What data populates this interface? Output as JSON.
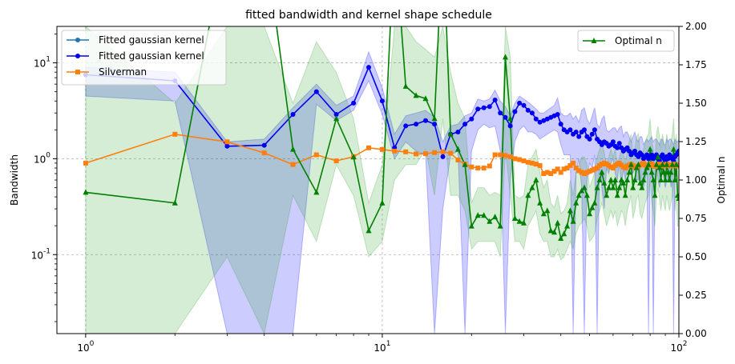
{
  "chart_data": {
    "type": "line",
    "title": "fitted bandwidth and kernel shape schedule",
    "xscale": "log",
    "xlim": [
      0.8,
      100
    ],
    "x_tick_labels": [
      "10^0",
      "10^1",
      "10^2"
    ],
    "left_axis": {
      "label": "Bandwidth",
      "scale": "log",
      "ylim": [
        0.015,
        24
      ],
      "tick_labels": [
        "10^-1",
        "10^0",
        "10^1"
      ]
    },
    "right_axis": {
      "label": "Optimal n",
      "scale": "linear",
      "ylim": [
        0.0,
        2.0
      ],
      "tick_labels": [
        "0.00",
        "0.25",
        "0.50",
        "0.75",
        "1.00",
        "1.25",
        "1.50",
        "1.75",
        "2.00"
      ]
    },
    "grid": true,
    "legends": [
      {
        "placement": "top-left",
        "entries": [
          "Fitted gaussian kernel",
          "Fitted gaussian kernel",
          "Silverman"
        ]
      },
      {
        "placement": "top-right",
        "entries": [
          "Optimal n"
        ]
      }
    ],
    "series": [
      {
        "name": "Fitted gaussian kernel",
        "axis": "left",
        "color": "#1f77b4",
        "marker": "circle",
        "x": [],
        "y": []
      },
      {
        "name": "Fitted gaussian kernel",
        "axis": "left",
        "color": "#0000ee",
        "band_color": "#0000ff",
        "marker": "circle",
        "x": [
          1,
          2,
          3,
          4,
          5,
          6,
          7,
          8,
          9,
          10,
          11,
          12,
          13,
          14,
          15,
          16,
          17,
          18,
          19,
          20,
          21,
          22,
          23,
          24,
          25,
          26,
          27,
          28,
          29,
          30,
          31,
          32,
          33,
          34,
          35,
          36,
          37,
          38,
          39,
          40,
          41,
          42,
          43,
          44,
          45,
          46,
          47,
          48,
          49,
          50,
          51,
          52,
          53,
          54,
          55,
          56,
          57,
          58,
          59,
          60,
          61,
          62,
          63,
          64,
          65,
          66,
          67,
          68,
          69,
          70,
          71,
          72,
          73,
          74,
          75,
          76,
          77,
          78,
          79,
          80,
          81,
          82,
          83,
          84,
          85,
          86,
          87,
          88,
          89,
          90,
          91,
          92,
          93,
          94,
          95,
          96,
          97,
          98,
          99,
          100
        ],
        "y": [
          7.5,
          6.5,
          1.35,
          1.38,
          2.9,
          5.0,
          2.9,
          3.8,
          9.0,
          4.0,
          1.3,
          2.2,
          2.3,
          2.5,
          2.3,
          1.05,
          1.8,
          1.9,
          2.3,
          2.6,
          3.3,
          3.4,
          3.5,
          4.1,
          3.0,
          2.7,
          2.2,
          3.1,
          3.8,
          3.6,
          3.2,
          3.0,
          2.6,
          2.4,
          2.5,
          2.6,
          2.7,
          2.8,
          2.9,
          2.3,
          2.0,
          1.9,
          2.0,
          1.8,
          1.9,
          1.7,
          1.9,
          2.0,
          1.7,
          1.6,
          1.8,
          2.0,
          1.6,
          1.5,
          1.4,
          1.5,
          1.45,
          1.35,
          1.4,
          1.5,
          1.35,
          1.3,
          1.45,
          1.3,
          1.2,
          1.25,
          1.3,
          1.2,
          1.1,
          1.15,
          1.2,
          1.1,
          1.05,
          1.15,
          1.1,
          1.0,
          1.05,
          1.1,
          1.0,
          1.05,
          1.1,
          1.0,
          1.05,
          1.1,
          1.0,
          0.95,
          1.05,
          1.1,
          1.0,
          0.95,
          1.05,
          1.0,
          1.1,
          1.05,
          1.0,
          0.95,
          1.05,
          1.1,
          1.15,
          1.2
        ],
        "lower": [
          4.5,
          4.0,
          0.015,
          0.015,
          0.015,
          3.7,
          2.5,
          3.2,
          6.5,
          2.9,
          1.0,
          1.5,
          1.2,
          1.1,
          0.015,
          0.3,
          1.1,
          1.2,
          0.015,
          1.2,
          2.0,
          2.3,
          2.1,
          2.2,
          1.2,
          0.015,
          0.6,
          1.5,
          2.0,
          2.2,
          1.9,
          1.9,
          1.8,
          1.6,
          1.7,
          1.8,
          1.9,
          2.0,
          1.9,
          1.4,
          1.1,
          1.1,
          1.1,
          0.015,
          0.7,
          1.0,
          0.5,
          0.015,
          0.6,
          0.9,
          0.8,
          1.1,
          0.015,
          0.9,
          0.5,
          0.3,
          0.8,
          0.7,
          0.9,
          1.0,
          0.7,
          0.6,
          0.9,
          0.5,
          0.8,
          0.6,
          0.8,
          0.7,
          0.9,
          0.7,
          0.8,
          0.6,
          0.6,
          0.8,
          0.5,
          0.5,
          0.6,
          0.8,
          0.015,
          0.6,
          0.7,
          0.015,
          0.6,
          0.8,
          0.6,
          0.5,
          0.6,
          0.8,
          0.6,
          0.5,
          0.6,
          0.6,
          0.8,
          0.5,
          0.6,
          0.015,
          0.6,
          0.8,
          0.9,
          0.9
        ],
        "upper": [
          9.0,
          8.0,
          1.5,
          1.6,
          3.4,
          6.0,
          3.6,
          4.5,
          13.0,
          5.5,
          1.8,
          2.8,
          3.0,
          3.2,
          2.7,
          1.5,
          2.2,
          2.3,
          2.8,
          3.0,
          4.2,
          4.0,
          4.2,
          5.2,
          4.0,
          3.5,
          2.8,
          3.8,
          4.5,
          4.2,
          3.9,
          3.6,
          3.3,
          3.0,
          3.0,
          3.2,
          3.4,
          3.6,
          4.3,
          3.0,
          2.8,
          2.8,
          3.0,
          2.6,
          2.8,
          2.4,
          3.2,
          3.4,
          2.6,
          2.3,
          2.8,
          3.4,
          2.3,
          2.1,
          2.6,
          2.8,
          2.0,
          1.9,
          2.0,
          2.1,
          2.1,
          1.9,
          2.1,
          2.2,
          1.7,
          1.9,
          1.9,
          1.7,
          1.5,
          1.7,
          1.9,
          1.6,
          1.5,
          1.7,
          1.7,
          1.4,
          1.5,
          1.6,
          1.5,
          1.6,
          1.7,
          1.5,
          1.6,
          1.6,
          1.5,
          1.4,
          1.6,
          1.6,
          1.4,
          1.4,
          1.6,
          1.5,
          1.6,
          1.6,
          1.5,
          1.4,
          1.6,
          1.5,
          1.5,
          1.6
        ]
      },
      {
        "name": "Silverman",
        "axis": "left",
        "color": "#ff7f0e",
        "marker": "square",
        "x": [
          1,
          2,
          3,
          4,
          5,
          6,
          7,
          8,
          9,
          10,
          11,
          12,
          13,
          14,
          15,
          16,
          17,
          18,
          19,
          20,
          21,
          22,
          23,
          24,
          25,
          26,
          27,
          28,
          29,
          30,
          31,
          32,
          33,
          34,
          35,
          36,
          37,
          38,
          39,
          40,
          41,
          42,
          43,
          44,
          45,
          46,
          47,
          48,
          49,
          50,
          51,
          52,
          53,
          54,
          55,
          56,
          57,
          58,
          59,
          60,
          61,
          62,
          63,
          64,
          65,
          66,
          67,
          68,
          69,
          70,
          71,
          72,
          73,
          74,
          75,
          76,
          77,
          78,
          79,
          80,
          81,
          82,
          83,
          84,
          85,
          86,
          87,
          88,
          89,
          90,
          91,
          92,
          93,
          94,
          95,
          96,
          97,
          98,
          99,
          100
        ],
        "y": [
          0.9,
          1.8,
          1.5,
          1.15,
          0.87,
          1.1,
          0.95,
          1.05,
          1.3,
          1.25,
          1.2,
          1.18,
          1.12,
          1.13,
          1.16,
          1.18,
          1.14,
          0.97,
          0.88,
          0.82,
          0.8,
          0.8,
          0.84,
          1.1,
          1.1,
          1.08,
          1.05,
          1.0,
          0.98,
          0.95,
          0.92,
          0.9,
          0.88,
          0.85,
          0.7,
          0.72,
          0.7,
          0.74,
          0.78,
          0.72,
          0.78,
          0.8,
          0.85,
          0.9,
          0.8,
          0.75,
          0.72,
          0.7,
          0.72,
          0.74,
          0.76,
          0.78,
          0.8,
          0.85,
          0.88,
          0.9,
          0.88,
          0.85,
          0.82,
          0.8,
          0.85,
          0.88,
          0.9,
          0.86,
          0.82,
          0.8,
          0.84,
          0.86,
          0.88,
          0.85,
          0.82,
          0.8,
          0.84,
          0.86,
          0.88,
          0.9,
          0.86,
          0.84,
          0.85,
          0.87,
          0.88,
          0.85,
          0.83,
          0.84,
          0.86,
          0.88,
          0.87,
          0.85,
          0.84,
          0.86,
          0.88,
          0.87,
          0.85,
          0.84,
          0.86,
          0.88,
          0.86,
          0.85,
          0.84,
          0.86
        ]
      },
      {
        "name": "Optimal n",
        "axis": "right",
        "color": "#008000",
        "band_color": "#2ca02c",
        "marker": "triangle",
        "x": [
          1,
          2,
          3,
          4,
          5,
          6,
          7,
          8,
          9,
          10,
          11,
          12,
          13,
          14,
          15,
          16,
          17,
          18,
          19,
          20,
          21,
          22,
          23,
          24,
          25,
          26,
          27,
          28,
          29,
          30,
          31,
          32,
          33,
          34,
          35,
          36,
          37,
          38,
          39,
          40,
          41,
          42,
          43,
          44,
          45,
          46,
          47,
          48,
          49,
          50,
          51,
          52,
          53,
          54,
          55,
          56,
          57,
          58,
          59,
          60,
          61,
          62,
          63,
          64,
          65,
          66,
          67,
          68,
          69,
          70,
          71,
          72,
          73,
          74,
          75,
          76,
          77,
          78,
          79,
          80,
          81,
          82,
          83,
          84,
          85,
          86,
          87,
          88,
          89,
          90,
          91,
          92,
          93,
          94,
          95,
          96,
          97,
          98,
          99,
          100
        ],
        "y": [
          0.92,
          0.85,
          2.6,
          2.6,
          1.2,
          0.92,
          1.4,
          1.15,
          0.67,
          0.85,
          2.6,
          1.61,
          1.55,
          1.53,
          1.4,
          2.6,
          1.3,
          1.2,
          1.1,
          0.7,
          0.77,
          0.77,
          0.73,
          0.76,
          0.7,
          1.8,
          1.4,
          0.75,
          0.73,
          0.72,
          0.9,
          0.95,
          1.0,
          0.85,
          0.78,
          0.8,
          0.67,
          0.66,
          0.72,
          0.62,
          0.65,
          0.7,
          0.8,
          0.73,
          0.85,
          0.9,
          0.93,
          0.95,
          0.9,
          0.78,
          0.82,
          0.85,
          0.95,
          1.0,
          1.05,
          0.98,
          0.9,
          0.95,
          1.0,
          0.95,
          1.0,
          0.9,
          0.95,
          1.0,
          0.98,
          0.9,
          1.0,
          1.05,
          1.1,
          0.95,
          1.0,
          1.08,
          1.1,
          0.98,
          0.95,
          1.0,
          1.05,
          1.08,
          1.1,
          1.2,
          1.05,
          1.0,
          0.9,
          1.1,
          1.15,
          1.08,
          1.0,
          1.1,
          1.05,
          1.0,
          1.1,
          1.05,
          1.0,
          1.05,
          1.1,
          1.2,
          1.0,
          1.1,
          0.9,
          0.88
        ],
        "lower": [
          0.0,
          0.0,
          0.5,
          0.0,
          0.9,
          0.6,
          1.1,
          0.9,
          0.5,
          0.6,
          1.0,
          1.1,
          1.1,
          1.2,
          0.9,
          1.4,
          0.9,
          0.9,
          0.8,
          0.55,
          0.6,
          0.6,
          0.6,
          0.6,
          0.5,
          1.2,
          0.9,
          0.6,
          0.6,
          0.55,
          0.7,
          0.75,
          0.8,
          0.65,
          0.6,
          0.6,
          0.5,
          0.5,
          0.55,
          0.48,
          0.5,
          0.55,
          0.6,
          0.55,
          0.65,
          0.7,
          0.72,
          0.75,
          0.7,
          0.6,
          0.62,
          0.65,
          0.75,
          0.8,
          0.85,
          0.78,
          0.7,
          0.75,
          0.8,
          0.75,
          0.8,
          0.7,
          0.75,
          0.8,
          0.78,
          0.7,
          0.8,
          0.85,
          0.9,
          0.75,
          0.8,
          0.88,
          0.9,
          0.78,
          0.75,
          0.8,
          0.85,
          0.88,
          0.9,
          1.0,
          0.85,
          0.8,
          0.7,
          0.9,
          0.95,
          0.88,
          0.8,
          0.9,
          0.85,
          0.8,
          0.9,
          0.85,
          0.8,
          0.85,
          0.9,
          1.0,
          0.8,
          0.9,
          0.7,
          0.7
        ],
        "upper": [
          2.0,
          1.5,
          2.0,
          2.0,
          1.5,
          1.9,
          1.7,
          1.4,
          0.85,
          1.1,
          2.0,
          2.0,
          1.9,
          1.85,
          1.8,
          2.0,
          1.7,
          1.5,
          1.4,
          0.85,
          0.95,
          0.95,
          0.9,
          0.92,
          0.9,
          2.0,
          1.8,
          0.9,
          0.88,
          0.9,
          1.1,
          1.15,
          1.2,
          1.05,
          0.95,
          1.0,
          0.85,
          0.82,
          0.9,
          0.78,
          0.8,
          0.85,
          1.0,
          0.9,
          1.05,
          1.1,
          1.15,
          1.15,
          1.1,
          0.95,
          1.0,
          1.05,
          1.15,
          1.2,
          1.25,
          1.18,
          1.1,
          1.15,
          1.2,
          1.15,
          1.2,
          1.1,
          1.15,
          1.2,
          1.18,
          1.1,
          1.2,
          1.25,
          1.3,
          1.15,
          1.2,
          1.28,
          1.3,
          1.18,
          1.15,
          1.2,
          1.25,
          1.28,
          1.3,
          1.4,
          1.25,
          1.2,
          1.1,
          1.3,
          1.35,
          1.28,
          1.2,
          1.3,
          1.25,
          1.2,
          1.3,
          1.25,
          1.2,
          1.25,
          1.3,
          1.4,
          1.2,
          1.3,
          1.1,
          1.08
        ]
      }
    ]
  }
}
